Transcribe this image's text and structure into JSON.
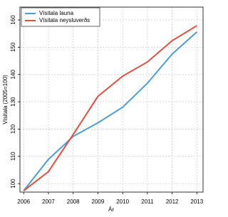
{
  "chart_data": {
    "type": "line",
    "x_label": "Ár",
    "y_label": "Vísitala (2005=100)",
    "x": [
      2006,
      2007,
      2008,
      2009,
      2010,
      2011,
      2012,
      2013
    ],
    "series": [
      {
        "name": "Vísitala launa",
        "color": "#4a9fd8",
        "values": [
          97.4,
          108.9,
          117.3,
          122.3,
          128.0,
          136.8,
          147.5,
          155.6
        ]
      },
      {
        "name": "Vísitala neysluverðs",
        "color": "#e84c3d",
        "values": [
          97.4,
          104.4,
          118.0,
          132.0,
          139.4,
          144.6,
          152.4,
          157.9
        ]
      }
    ],
    "xlim": [
      2005.85,
      2013.25
    ],
    "xticks": [
      2006,
      2007,
      2008,
      2009,
      2010,
      2011,
      2012,
      2013
    ],
    "ylim": [
      96.9,
      164.7
    ],
    "yticks": [
      100,
      110,
      120,
      130,
      140,
      150,
      160
    ],
    "grid": true,
    "legend": "top-left"
  }
}
